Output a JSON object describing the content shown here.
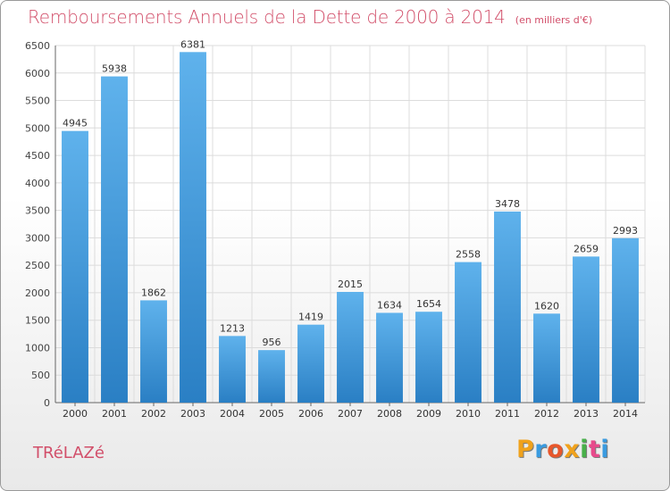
{
  "header": {
    "title": "Remboursements Annuels de la Dette de 2000 à 2014",
    "subtitle": "(en milliers d'€)"
  },
  "footer": {
    "city": "TRéLAZé",
    "logo_letters": [
      "P",
      "r",
      "o",
      "x",
      "i",
      "t",
      "i"
    ]
  },
  "colors": {
    "bar_top": "#5fb2ec",
    "bar_bottom": "#2a7fc4",
    "title": "#d24f6a",
    "grid": "#dcdcdc"
  },
  "chart_data": {
    "type": "bar",
    "title": "Remboursements Annuels de la Dette de 2000 à 2014",
    "subtitle": "(en milliers d'€)",
    "categories": [
      "2000",
      "2001",
      "2002",
      "2003",
      "2004",
      "2005",
      "2006",
      "2007",
      "2008",
      "2009",
      "2010",
      "2011",
      "2012",
      "2013",
      "2014"
    ],
    "values": [
      4945,
      5938,
      1862,
      6381,
      1213,
      956,
      1419,
      2015,
      1634,
      1654,
      2558,
      3478,
      1620,
      2659,
      2993
    ],
    "ylim": [
      0,
      6500
    ],
    "yticks": [
      0,
      500,
      1000,
      1500,
      2000,
      2500,
      3000,
      3500,
      4000,
      4500,
      5000,
      5500,
      6000,
      6500
    ],
    "grid": true,
    "xlabel": "",
    "ylabel": ""
  }
}
